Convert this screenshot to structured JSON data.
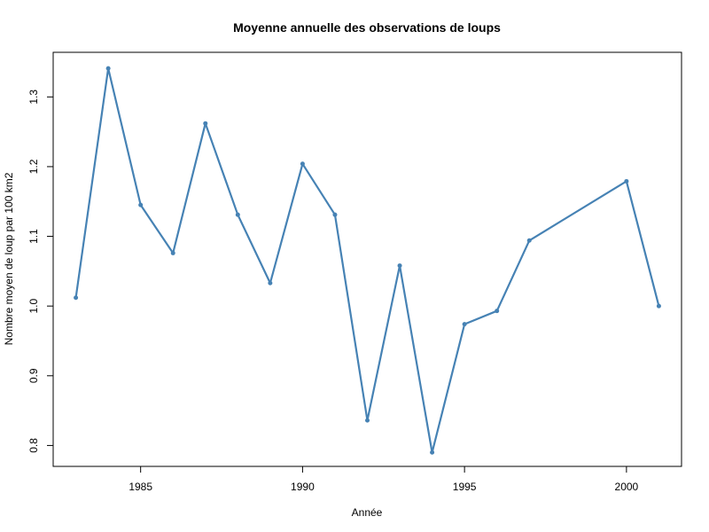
{
  "chart_data": {
    "type": "line",
    "title": "Moyenne annuelle des observations de loups",
    "xlabel": "Année",
    "ylabel": "Nombre moyen de loup par 100 km2",
    "xlim": [
      1982.3,
      2001.7
    ],
    "ylim": [
      0.77,
      1.364
    ],
    "x_ticks": [
      1985,
      1990,
      1995,
      2000
    ],
    "y_ticks": [
      0.8,
      0.9,
      1.0,
      1.1,
      1.2,
      1.3
    ],
    "x_tick_labels": [
      "1985",
      "1990",
      "1995",
      "2000"
    ],
    "y_tick_labels": [
      "0.8",
      "0.9",
      "1.0",
      "1.1",
      "1.2",
      "1.3"
    ],
    "grid": false,
    "color": "#4682B4",
    "x": [
      1983,
      1984,
      1985,
      1986,
      1987,
      1988,
      1989,
      1990,
      1991,
      1992,
      1993,
      1994,
      1995,
      1996,
      1997,
      2000,
      2001
    ],
    "y": [
      1.012,
      1.341,
      1.145,
      1.076,
      1.262,
      1.131,
      1.033,
      1.204,
      1.131,
      0.836,
      1.058,
      0.79,
      0.974,
      0.993,
      1.094,
      1.179,
      1.0
    ]
  }
}
